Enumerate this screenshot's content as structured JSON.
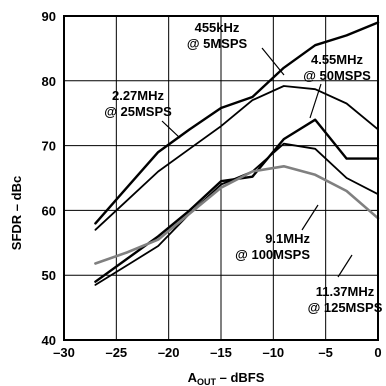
{
  "chart_data": {
    "type": "line",
    "xlabel_main": "A",
    "xlabel_sub": "OUT",
    "xlabel_rest": " – dBFS",
    "ylabel": "SFDR – dBc",
    "xlim": [
      -30,
      0
    ],
    "ylim": [
      40,
      90
    ],
    "xticks": [
      "–30",
      "–25",
      "–20",
      "–15",
      "–10",
      "–5",
      "0"
    ],
    "yticks": [
      "40",
      "50",
      "60",
      "70",
      "80",
      "90"
    ],
    "grid": true,
    "series": [
      {
        "name": "455kHz @ 5MSPS",
        "label_lines": [
          "455kHz",
          "@ 5MSPS"
        ],
        "color": "#000000",
        "x": [
          -27,
          -24,
          -21,
          -18,
          -15,
          -12,
          -9,
          -6,
          -3,
          0
        ],
        "y": [
          58,
          63.5,
          69,
          72.5,
          75.8,
          77.5,
          82,
          85.5,
          87,
          89
        ]
      },
      {
        "name": "2.27MHz @ 25MSPS",
        "label_lines": [
          "2.27MHz",
          "@ 25MSPS"
        ],
        "color": "#000000",
        "x": [
          -27,
          -24,
          -21,
          -18,
          -15,
          -12,
          -9,
          -6,
          -3,
          0
        ],
        "y": [
          57,
          61.5,
          66,
          69.5,
          73,
          77,
          79.2,
          78.7,
          76.5,
          72.5
        ]
      },
      {
        "name": "4.55MHz @ 50MSPS",
        "label_lines": [
          "4.55MHz",
          "@ 50MSPS"
        ],
        "color": "#000000",
        "x": [
          -27,
          -24,
          -21,
          -18,
          -15,
          -12,
          -9,
          -6,
          -3,
          0
        ],
        "y": [
          49,
          52.5,
          56,
          60,
          64.5,
          65.2,
          71,
          74,
          68,
          68
        ]
      },
      {
        "name": "9.1MHz @ 100MSPS",
        "label_lines": [
          "9.1MHz",
          "@ 100MSPS"
        ],
        "color": "#000000",
        "x": [
          -27,
          -24,
          -21,
          -18,
          -15,
          -12,
          -9,
          -6,
          -3,
          0
        ],
        "y": [
          48.5,
          51.5,
          54.5,
          59.5,
          64,
          66,
          70.3,
          69.5,
          65,
          62.5
        ]
      },
      {
        "name": "11.37MHz @ 125MSPS",
        "label_lines": [
          "11.37MHz",
          "@ 125MSPS"
        ],
        "color": "#808080",
        "x": [
          -27,
          -24,
          -21,
          -18,
          -15,
          -12,
          -9,
          -6,
          -3,
          0
        ],
        "y": [
          51.8,
          53.5,
          55.5,
          59.5,
          63.5,
          66,
          66.8,
          65.5,
          63,
          58.8
        ]
      }
    ]
  }
}
